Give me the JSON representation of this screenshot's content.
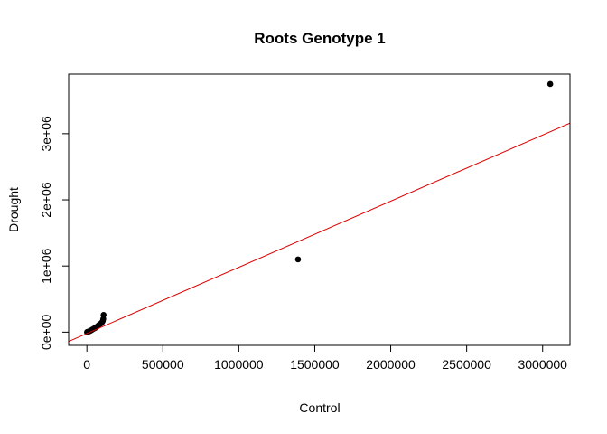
{
  "chart_data": {
    "type": "scatter",
    "title": "Roots Genotype 1",
    "xlabel": "Control",
    "ylabel": "Drought",
    "xlim": [
      -120000,
      3180000
    ],
    "ylim": [
      -200000,
      3900000
    ],
    "x_ticks": [
      {
        "value": 0,
        "label": "0"
      },
      {
        "value": 500000,
        "label": "500000"
      },
      {
        "value": 1000000,
        "label": "1000000"
      },
      {
        "value": 1500000,
        "label": "1500000"
      },
      {
        "value": 2000000,
        "label": "2000000"
      },
      {
        "value": 2500000,
        "label": "2500000"
      },
      {
        "value": 3000000,
        "label": "3000000"
      }
    ],
    "y_ticks": [
      {
        "value": 0,
        "label": "0e+00"
      },
      {
        "value": 1000000,
        "label": "1e+06"
      },
      {
        "value": 2000000,
        "label": "2e+06"
      },
      {
        "value": 3000000,
        "label": "3e+06"
      }
    ],
    "grid": false,
    "point_color": "#000000",
    "points": [
      {
        "x": 3050000,
        "y": 3750000
      },
      {
        "x": 1390000,
        "y": 1100000
      },
      {
        "x": 110000,
        "y": 260000
      },
      {
        "x": 108000,
        "y": 200000
      },
      {
        "x": 105000,
        "y": 170000
      },
      {
        "x": 100000,
        "y": 150000
      },
      {
        "x": 92000,
        "y": 130000
      },
      {
        "x": 85000,
        "y": 120000
      },
      {
        "x": 78000,
        "y": 105000
      },
      {
        "x": 70000,
        "y": 90000
      },
      {
        "x": 62000,
        "y": 75000
      },
      {
        "x": 55000,
        "y": 65000
      },
      {
        "x": 48000,
        "y": 55000
      },
      {
        "x": 40000,
        "y": 45000
      },
      {
        "x": 33000,
        "y": 35000
      },
      {
        "x": 26000,
        "y": 25000
      },
      {
        "x": 20000,
        "y": 18000
      },
      {
        "x": 14000,
        "y": 12000
      },
      {
        "x": 8000,
        "y": 6000
      },
      {
        "x": 3000,
        "y": 2000
      },
      {
        "x": 1000,
        "y": 500
      }
    ],
    "fit_line": {
      "intercept": -20000,
      "slope": 1.0,
      "color": "#dd0000"
    }
  }
}
